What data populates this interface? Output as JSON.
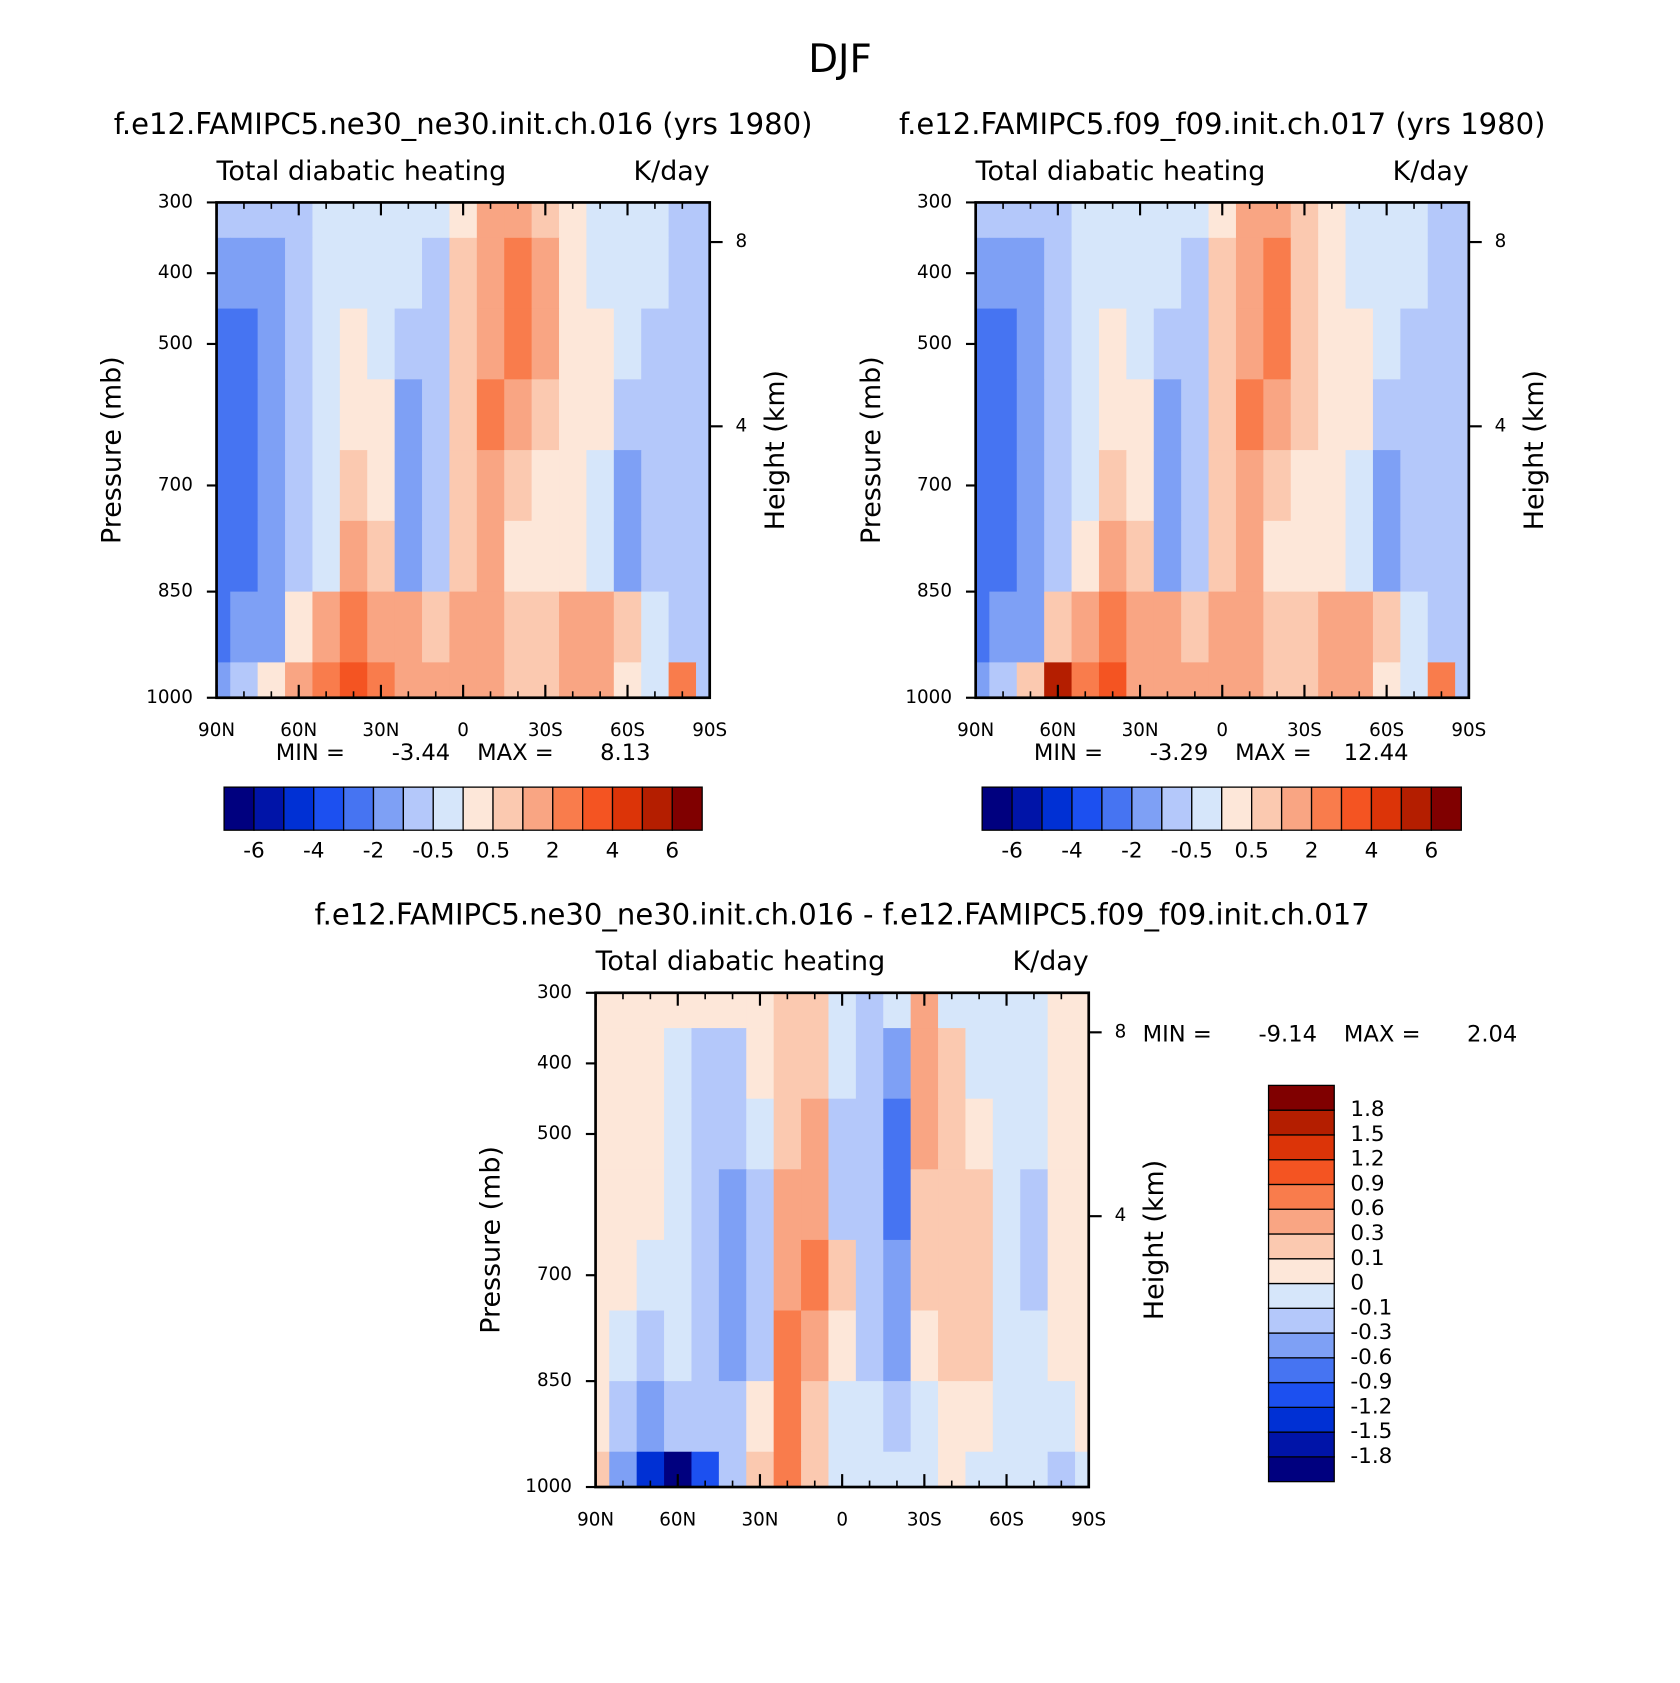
{
  "title": "DJF",
  "chart_data": [
    {
      "type": "contour",
      "title": "f.e12.FAMIPC5.ne30_ne30.init.ch.016 (yrs 1980)",
      "subtitle": "Total diabatic heating",
      "units": "K/day",
      "ylabel": "Pressure (mb)",
      "y2label": "Height (km)",
      "xlim": [
        90,
        -90
      ],
      "xticks": [
        {
          "value": 90,
          "label": "90N"
        },
        {
          "value": 60,
          "label": "60N"
        },
        {
          "value": 30,
          "label": "30N"
        },
        0,
        {
          "value": -30,
          "label": "30S"
        },
        {
          "value": -60,
          "label": "60S"
        },
        {
          "value": -90,
          "label": "90S"
        }
      ],
      "ylim": [
        300,
        1000
      ],
      "yticks": [
        300,
        400,
        500,
        700,
        850,
        1000
      ],
      "y2ticks": [
        8,
        4
      ],
      "x": [
        90,
        80,
        70,
        60,
        50,
        40,
        30,
        20,
        10,
        0,
        -10,
        -20,
        -30,
        -40,
        -50,
        -60,
        -70,
        -80,
        -90
      ],
      "y": [
        300,
        400,
        500,
        600,
        700,
        800,
        900,
        1000
      ],
      "z": [
        [
          -1,
          -1,
          -1,
          -0.8,
          -0.5,
          -0.3,
          -0.3,
          -0.3,
          -0.3,
          0.3,
          1,
          1.5,
          0.8,
          0.3,
          -0.3,
          -0.3,
          -0.3,
          -0.6,
          -0.6
        ],
        [
          -1.5,
          -1.5,
          -1.2,
          -0.8,
          -0.5,
          -0.3,
          -0.3,
          -0.3,
          -0.6,
          0.5,
          1,
          2.5,
          1,
          0.3,
          -0.3,
          -0.3,
          -0.4,
          -0.8,
          -0.8
        ],
        [
          -2.5,
          -2.5,
          -1.5,
          -1,
          -0.5,
          0.2,
          -0.3,
          -0.6,
          -0.6,
          0.6,
          1.5,
          2.5,
          1.2,
          0.3,
          0.3,
          -0.3,
          -0.6,
          -1,
          -0.8
        ],
        [
          -2.5,
          -2.5,
          -1.5,
          -1,
          -0.3,
          0.3,
          0.2,
          -1.2,
          -0.6,
          0.6,
          2.5,
          1.5,
          0.6,
          0.3,
          0.2,
          -0.6,
          -0.8,
          -1,
          -1
        ],
        [
          -2.5,
          -2.5,
          -1.5,
          -1,
          -0.3,
          0.6,
          0.4,
          -1.5,
          -0.6,
          0.6,
          1.5,
          0.6,
          0.3,
          0.3,
          -0.3,
          -1.2,
          -0.8,
          -1,
          -1
        ],
        [
          -2.5,
          -2.5,
          -1.5,
          -1,
          -0.2,
          1.5,
          0.6,
          -1.2,
          -0.6,
          0.6,
          1.2,
          0.4,
          0.3,
          0.3,
          -0.3,
          -1.2,
          -0.8,
          -1,
          -1
        ],
        [
          -2.5,
          -2,
          -1.2,
          0.4,
          1.5,
          2.5,
          1.5,
          1.2,
          0.6,
          1.2,
          1.5,
          0.6,
          0.6,
          1.2,
          1.5,
          0.6,
          -0.3,
          -0.6,
          -1
        ],
        [
          -1.5,
          -1,
          0.3,
          1.5,
          2.5,
          3.5,
          2.5,
          1.5,
          1.2,
          1.5,
          1.2,
          0.6,
          0.6,
          1.5,
          1.2,
          0.3,
          -0.3,
          2.5,
          -1
        ]
      ],
      "min_label": "MIN =",
      "min": -3.44,
      "max_label": "MAX =",
      "max": 8.13,
      "colorbar": {
        "orientation": "horizontal",
        "label_step": 2,
        "levels": [
          -6,
          -5,
          -4,
          -3,
          -2,
          -1,
          -0.5,
          0,
          0.5,
          1,
          2,
          3,
          4,
          5,
          6
        ],
        "colors": [
          "#00007f",
          "#0014a8",
          "#0030d4",
          "#1c50f0",
          "#4674f2",
          "#7ea0f5",
          "#b4c8fa",
          "#d6e6fa",
          "#fde7d9",
          "#fbc9b0",
          "#f9a583",
          "#f97c4c",
          "#f45422",
          "#dc3408",
          "#b41e00",
          "#800000"
        ]
      }
    },
    {
      "type": "contour",
      "title": "f.e12.FAMIPC5.f09_f09.init.ch.017 (yrs 1980)",
      "subtitle": "Total diabatic heating",
      "units": "K/day",
      "ylabel": "Pressure (mb)",
      "y2label": "Height (km)",
      "xlim": [
        90,
        -90
      ],
      "xticks": [
        {
          "value": 90,
          "label": "90N"
        },
        {
          "value": 60,
          "label": "60N"
        },
        {
          "value": 30,
          "label": "30N"
        },
        0,
        {
          "value": -30,
          "label": "30S"
        },
        {
          "value": -60,
          "label": "60S"
        },
        {
          "value": -90,
          "label": "90S"
        }
      ],
      "ylim": [
        300,
        1000
      ],
      "yticks": [
        300,
        400,
        500,
        700,
        850,
        1000
      ],
      "y2ticks": [
        8,
        4
      ],
      "x": [
        90,
        80,
        70,
        60,
        50,
        40,
        30,
        20,
        10,
        0,
        -10,
        -20,
        -30,
        -40,
        -50,
        -60,
        -70,
        -80,
        -90
      ],
      "y": [
        300,
        400,
        500,
        600,
        700,
        800,
        900,
        1000
      ],
      "z": [
        [
          -1,
          -1,
          -1,
          -0.8,
          -0.5,
          -0.3,
          -0.3,
          -0.3,
          -0.3,
          0.4,
          1,
          1.5,
          0.6,
          0.3,
          -0.3,
          -0.3,
          -0.3,
          -0.6,
          -0.6
        ],
        [
          -1.5,
          -1.5,
          -1.2,
          -0.8,
          -0.5,
          -0.3,
          -0.3,
          -0.5,
          -0.6,
          0.6,
          1.5,
          2.5,
          0.6,
          0.3,
          -0.3,
          -0.3,
          -0.4,
          -0.8,
          -0.8
        ],
        [
          -2.5,
          -2.5,
          -1.5,
          -1,
          -0.5,
          0.3,
          -0.3,
          -0.8,
          -0.6,
          0.8,
          1.5,
          2.5,
          0.6,
          0.3,
          0.3,
          -0.3,
          -0.6,
          -1,
          -0.8
        ],
        [
          -2.5,
          -2.5,
          -1.5,
          -1,
          -0.3,
          0.4,
          0.2,
          -1.2,
          -0.6,
          0.8,
          2.5,
          1.5,
          0.6,
          0.3,
          0.2,
          -0.6,
          -0.8,
          -1,
          -1
        ],
        [
          -2.5,
          -2.5,
          -1.5,
          -1,
          -0.3,
          0.6,
          0.4,
          -1.5,
          -0.6,
          0.8,
          1.5,
          0.6,
          0.3,
          0.3,
          -0.3,
          -1.2,
          -0.8,
          -1,
          -1
        ],
        [
          -2.5,
          -2.5,
          -1.5,
          -1,
          0.2,
          1.2,
          0.6,
          -1.2,
          -0.6,
          0.8,
          1.2,
          0.4,
          0.3,
          0.3,
          -0.3,
          -1.2,
          -0.8,
          -1,
          -1
        ],
        [
          -2.5,
          -2,
          -1.2,
          0.6,
          1.5,
          2.5,
          1.5,
          1.2,
          0.6,
          1.2,
          1.5,
          0.6,
          0.6,
          1.2,
          1.5,
          0.6,
          -0.3,
          -0.6,
          -1
        ],
        [
          -1.5,
          -1,
          0.5,
          5,
          2.5,
          3.5,
          1.5,
          1.2,
          1.2,
          1.2,
          1.2,
          0.6,
          0.6,
          1.5,
          1.2,
          0.3,
          -0.3,
          2.5,
          -1
        ]
      ],
      "min_label": "MIN =",
      "min": -3.29,
      "max_label": "MAX =",
      "max": 12.44,
      "colorbar": {
        "orientation": "horizontal",
        "label_step": 2,
        "levels": [
          -6,
          -5,
          -4,
          -3,
          -2,
          -1,
          -0.5,
          0,
          0.5,
          1,
          2,
          3,
          4,
          5,
          6
        ],
        "colors": [
          "#00007f",
          "#0014a8",
          "#0030d4",
          "#1c50f0",
          "#4674f2",
          "#7ea0f5",
          "#b4c8fa",
          "#d6e6fa",
          "#fde7d9",
          "#fbc9b0",
          "#f9a583",
          "#f97c4c",
          "#f45422",
          "#dc3408",
          "#b41e00",
          "#800000"
        ]
      }
    },
    {
      "type": "contour",
      "title": "f.e12.FAMIPC5.ne30_ne30.init.ch.016 - f.e12.FAMIPC5.f09_f09.init.ch.017",
      "subtitle": "Total diabatic heating",
      "units": "K/day",
      "ylabel": "Pressure (mb)",
      "y2label": "Height (km)",
      "xlim": [
        90,
        -90
      ],
      "xticks": [
        {
          "value": 90,
          "label": "90N"
        },
        {
          "value": 60,
          "label": "60N"
        },
        {
          "value": 30,
          "label": "30N"
        },
        0,
        {
          "value": -30,
          "label": "30S"
        },
        {
          "value": -60,
          "label": "60S"
        },
        {
          "value": -90,
          "label": "90S"
        }
      ],
      "ylim": [
        300,
        1000
      ],
      "yticks": [
        300,
        400,
        500,
        700,
        850,
        1000
      ],
      "y2ticks": [
        8,
        4
      ],
      "x": [
        90,
        80,
        70,
        60,
        50,
        40,
        30,
        20,
        10,
        0,
        -10,
        -20,
        -30,
        -40,
        -50,
        -60,
        -70,
        -80,
        -90
      ],
      "y": [
        300,
        400,
        500,
        600,
        700,
        800,
        900,
        1000
      ],
      "z": [
        [
          0.05,
          0.05,
          0.05,
          0.05,
          0.05,
          0.05,
          0.05,
          0.2,
          0.2,
          -0.05,
          -0.2,
          -0.05,
          0.3,
          -0.05,
          -0.05,
          -0.05,
          -0.05,
          0.05,
          0.05
        ],
        [
          0.05,
          0.05,
          0.05,
          -0.05,
          -0.2,
          -0.2,
          0.05,
          0.2,
          0.2,
          -0.05,
          -0.2,
          -0.6,
          0.3,
          0.2,
          -0.05,
          -0.05,
          -0.05,
          0.05,
          0.05
        ],
        [
          0.05,
          0.05,
          0.05,
          -0.05,
          -0.2,
          -0.2,
          -0.05,
          0.2,
          0.3,
          -0.2,
          -0.2,
          -0.8,
          0.4,
          0.2,
          0.05,
          -0.05,
          -0.05,
          0.05,
          0.05
        ],
        [
          0.05,
          0.05,
          0.05,
          -0.05,
          -0.2,
          -0.4,
          -0.2,
          0.3,
          0.4,
          -0.2,
          -0.2,
          -0.8,
          0.2,
          0.2,
          0.2,
          -0.05,
          -0.2,
          0.05,
          0.05
        ],
        [
          0.05,
          0.05,
          -0.05,
          -0.05,
          -0.2,
          -0.4,
          -0.2,
          0.4,
          0.6,
          0.2,
          -0.2,
          -0.6,
          0.2,
          0.2,
          0.2,
          -0.05,
          -0.2,
          0.05,
          0.05
        ],
        [
          0.05,
          -0.05,
          -0.2,
          -0.05,
          -0.2,
          -0.4,
          -0.2,
          0.6,
          0.4,
          0.05,
          -0.2,
          -0.4,
          0.05,
          0.2,
          0.2,
          -0.05,
          -0.05,
          0.05,
          0.05
        ],
        [
          0.05,
          -0.2,
          -0.4,
          -0.2,
          -0.2,
          -0.2,
          0.05,
          0.6,
          0.2,
          -0.05,
          -0.05,
          -0.2,
          -0.05,
          0.05,
          0.05,
          -0.05,
          -0.05,
          -0.05,
          0.05
        ],
        [
          0.2,
          -0.6,
          -1.5,
          -2,
          -1,
          -0.2,
          0.2,
          0.6,
          0.2,
          -0.05,
          -0.05,
          -0.05,
          -0.05,
          0.05,
          -0.05,
          -0.05,
          -0.05,
          -0.2,
          -0.05
        ]
      ],
      "min_label": "MIN =",
      "min": -9.14,
      "max_label": "MAX =",
      "max": 2.04,
      "colorbar": {
        "orientation": "vertical",
        "label_step": 1,
        "levels": [
          -1.8,
          -1.5,
          -1.2,
          -0.9,
          -0.6,
          -0.3,
          -0.1,
          0,
          0.1,
          0.3,
          0.6,
          0.9,
          1.2,
          1.5,
          1.8
        ],
        "colors": [
          "#00007f",
          "#0014a8",
          "#0030d4",
          "#1c50f0",
          "#4674f2",
          "#7ea0f5",
          "#b4c8fa",
          "#d6e6fa",
          "#fde7d9",
          "#fbc9b0",
          "#f9a583",
          "#f97c4c",
          "#f45422",
          "#dc3408",
          "#b41e00",
          "#800000"
        ]
      }
    }
  ]
}
